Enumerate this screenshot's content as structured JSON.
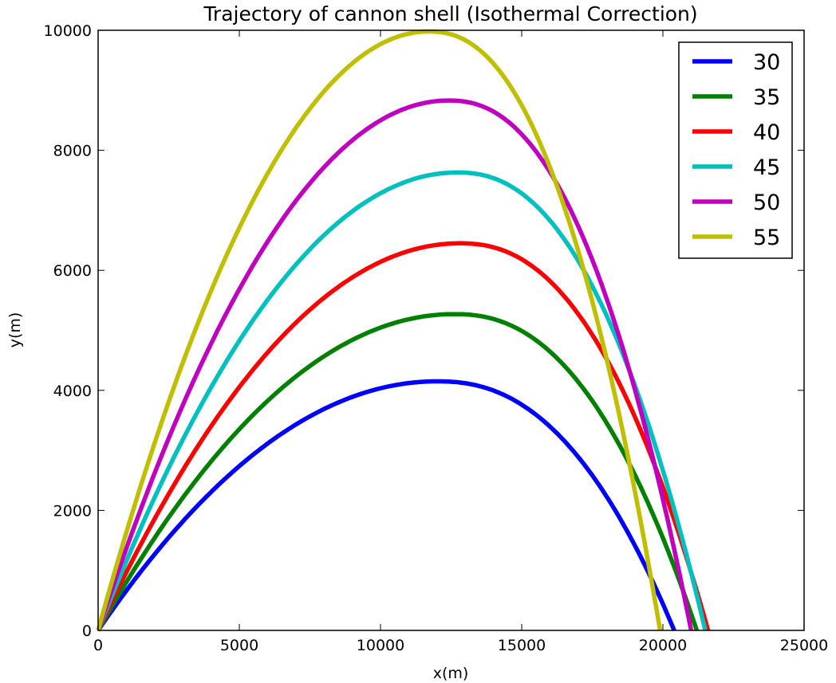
{
  "chart_data": {
    "type": "line",
    "title": "Trajectory of cannon shell (Isothermal Correction)",
    "xlabel": "x(m)",
    "ylabel": "y(m)",
    "xlim": [
      0,
      25000
    ],
    "ylim": [
      0,
      10000
    ],
    "xticks": [
      "0",
      "5000",
      "10000",
      "15000",
      "20000",
      "25000"
    ],
    "yticks": [
      "0",
      "2000",
      "4000",
      "6000",
      "8000",
      "10000"
    ],
    "grid": false,
    "legend_position": "top-right",
    "series": [
      {
        "name": "30",
        "color": "#0000ff",
        "x_peak": 12000,
        "y_peak": 4150,
        "x_range": 20400
      },
      {
        "name": "35",
        "color": "#008000",
        "x_peak": 12600,
        "y_peak": 5270,
        "x_range": 21200
      },
      {
        "name": "40",
        "color": "#ff0000",
        "x_peak": 12800,
        "y_peak": 6450,
        "x_range": 21600
      },
      {
        "name": "45",
        "color": "#00bfbf",
        "x_peak": 12700,
        "y_peak": 7630,
        "x_range": 21500
      },
      {
        "name": "50",
        "color": "#bf00bf",
        "x_peak": 12400,
        "y_peak": 8830,
        "x_range": 21000
      },
      {
        "name": "55",
        "color": "#bfbf00",
        "x_peak": 11700,
        "y_peak": 9980,
        "x_range": 19900
      }
    ]
  }
}
